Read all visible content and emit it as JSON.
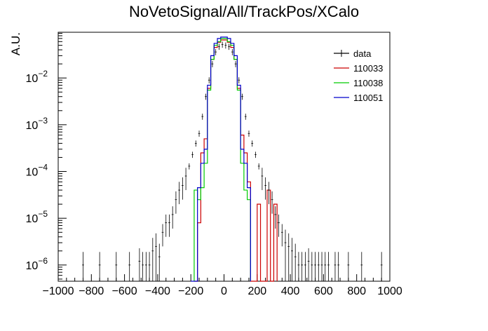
{
  "chart_data": {
    "type": "line",
    "title": "NoVetoSignal/All/TrackPos/XCalo",
    "xlabel": "",
    "ylabel": "A.U.",
    "xlim": [
      -1000,
      1000
    ],
    "ylim": [
      4.5e-07,
      0.095
    ],
    "yscale": "log",
    "x_ticks": [
      -1000,
      -800,
      -600,
      -400,
      -200,
      0,
      200,
      400,
      600,
      800,
      1000
    ],
    "x_tick_labels": [
      "−1000",
      "−800",
      "−600",
      "−400",
      "−200",
      "0",
      "200",
      "400",
      "600",
      "800",
      "1000"
    ],
    "y_ticks": [
      1e-06,
      1e-05,
      0.0001,
      0.001,
      0.01
    ],
    "y_tick_labels": [
      {
        "base": "10",
        "exp": "−6"
      },
      {
        "base": "10",
        "exp": "−5"
      },
      {
        "base": "10",
        "exp": "−4"
      },
      {
        "base": "10",
        "exp": "−3"
      },
      {
        "base": "10",
        "exp": "−2"
      }
    ],
    "grid": false,
    "legend_position": "top-right",
    "legend": [
      {
        "label": "data",
        "color": "#000000"
      },
      {
        "label": "110033",
        "color": "#cc0000"
      },
      {
        "label": "110038",
        "color": "#00cc00"
      },
      {
        "label": "110051",
        "color": "#0000cc"
      }
    ],
    "bin_width": 20,
    "data": {
      "name": "data",
      "color": "#000000",
      "x": [
        -850,
        -750,
        -650,
        -570,
        -510,
        -490,
        -470,
        -450,
        -430,
        -410,
        -390,
        -370,
        -350,
        -330,
        -310,
        -290,
        -270,
        -250,
        -230,
        -210,
        -190,
        -170,
        -150,
        -130,
        -110,
        -90,
        -70,
        -50,
        -30,
        -10,
        10,
        30,
        50,
        70,
        90,
        110,
        130,
        150,
        170,
        190,
        210,
        230,
        250,
        270,
        290,
        310,
        330,
        350,
        370,
        390,
        410,
        430,
        450,
        470,
        490,
        510,
        530,
        550,
        570,
        590,
        610,
        630,
        670,
        690,
        750,
        830,
        950
      ],
      "y": [
        1e-06,
        1e-06,
        1e-06,
        1e-06,
        1.2e-06,
        1e-06,
        1e-06,
        1e-06,
        2e-06,
        2.5e-06,
        1.5e-06,
        5e-06,
        8e-06,
        8e-06,
        1.2e-05,
        2.5e-05,
        4e-05,
        5e-05,
        8e-05,
        0.00013,
        0.00023,
        0.0004,
        0.00065,
        0.0015,
        0.004,
        0.009,
        0.02,
        0.036,
        0.047,
        0.052,
        0.05,
        0.047,
        0.036,
        0.02,
        0.009,
        0.004,
        0.0015,
        0.00065,
        0.0004,
        0.00023,
        0.00013,
        8e-05,
        5e-05,
        4e-05,
        2.5e-05,
        1.2e-05,
        8e-06,
        5e-06,
        3e-06,
        2.5e-06,
        2e-06,
        1.5e-06,
        1e-06,
        1e-06,
        1e-06,
        1.2e-06,
        1e-06,
        1e-06,
        1e-06,
        1e-06,
        1e-06,
        1e-06,
        1e-06,
        1e-06,
        1e-06,
        1e-06,
        1e-06
      ]
    },
    "series": [
      {
        "name": "110033",
        "color": "#cc0000",
        "edges": [
          -180,
          -160,
          -140,
          -120,
          -100,
          -80,
          -60,
          -40,
          -20,
          0,
          20,
          40,
          60,
          80,
          100,
          120,
          140,
          160,
          180,
          200,
          220,
          240,
          260,
          280,
          300,
          320
        ],
        "values": [
          4.5e-07,
          8e-06,
          0.00025,
          0.0005,
          0.006,
          0.025,
          0.045,
          0.058,
          0.065,
          0.065,
          0.058,
          0.045,
          0.025,
          0.006,
          0.0006,
          0.00025,
          6e-05,
          4.5e-07,
          4.5e-07,
          2e-05,
          4.5e-07,
          4.5e-07,
          4e-05,
          4.5e-07,
          2e-05
        ]
      },
      {
        "name": "110038",
        "color": "#00cc00",
        "edges": [
          -180,
          -160,
          -140,
          -120,
          -100,
          -80,
          -60,
          -40,
          -20,
          0,
          20,
          40,
          60,
          80,
          100,
          120,
          140,
          160
        ],
        "values": [
          4e-05,
          2.5e-05,
          4.5e-05,
          0.00015,
          0.0055,
          0.025,
          0.05,
          0.06,
          0.07,
          0.07,
          0.06,
          0.05,
          0.025,
          0.0055,
          0.00015,
          4e-05,
          2.5e-05
        ]
      },
      {
        "name": "110051",
        "color": "#0000cc",
        "edges": [
          -200,
          -180,
          -160,
          -140,
          -120,
          -100,
          -80,
          -60,
          -40,
          -20,
          0,
          20,
          40,
          60,
          80,
          100,
          120,
          140,
          160
        ],
        "values": [
          4.5e-07,
          4.5e-07,
          4.5e-05,
          0.00015,
          0.0003,
          0.007,
          0.03,
          0.055,
          0.07,
          0.075,
          0.075,
          0.07,
          0.055,
          0.03,
          0.007,
          0.0003,
          0.00015,
          4.5e-05
        ]
      }
    ]
  }
}
